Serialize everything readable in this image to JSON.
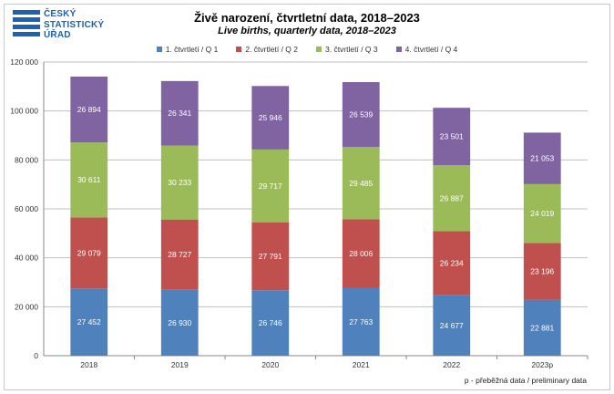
{
  "header": {
    "logo_lines": [
      "ČESKÝ",
      "STATISTICKÝ",
      "ÚŘAD"
    ],
    "brand_color": "#1d62b0"
  },
  "chart_data": {
    "type": "bar",
    "stacked": true,
    "title": "Živě narození, čtvrtletní data, 2018–2023",
    "subtitle": "Live births, quarterly data, 2018–2023",
    "categories": [
      "2018",
      "2019",
      "2020",
      "2021",
      "2022",
      "2023p"
    ],
    "series": [
      {
        "name": "1. čtvrtletí / Q 1",
        "color": "#4f81bd",
        "values": [
          27452,
          26930,
          26746,
          27763,
          24677,
          22881
        ],
        "labels": [
          "27 452",
          "26 930",
          "26 746",
          "27 763",
          "24 677",
          "22 881"
        ]
      },
      {
        "name": "2. čtvrtletí / Q 2",
        "color": "#c0504d",
        "values": [
          29079,
          28727,
          27791,
          28006,
          26234,
          23196
        ],
        "labels": [
          "29 079",
          "28 727",
          "27 791",
          "28 006",
          "26 234",
          "23 196"
        ]
      },
      {
        "name": "3. čtvrtletí / Q 3",
        "color": "#9bbb59",
        "values": [
          30611,
          30233,
          29717,
          29485,
          26887,
          24019
        ],
        "labels": [
          "30 611",
          "30 233",
          "29 717",
          "29 485",
          "26 887",
          "24 019"
        ]
      },
      {
        "name": "4. čtvrtletí / Q 4",
        "color": "#8064a2",
        "values": [
          26894,
          26341,
          25946,
          26539,
          23501,
          21053
        ],
        "labels": [
          "26 894",
          "26 341",
          "25 946",
          "26 539",
          "23 501",
          "21 053"
        ]
      }
    ],
    "ylim": [
      0,
      120000
    ],
    "yticks": [
      0,
      20000,
      40000,
      60000,
      80000,
      100000,
      120000
    ],
    "ytick_labels": [
      "0",
      "20 000",
      "40 000",
      "60 000",
      "80 000",
      "100 000",
      "120 000"
    ],
    "grid": true,
    "legend_position": "top-center",
    "footnote": "p - přeběžná data / preliminary data"
  }
}
